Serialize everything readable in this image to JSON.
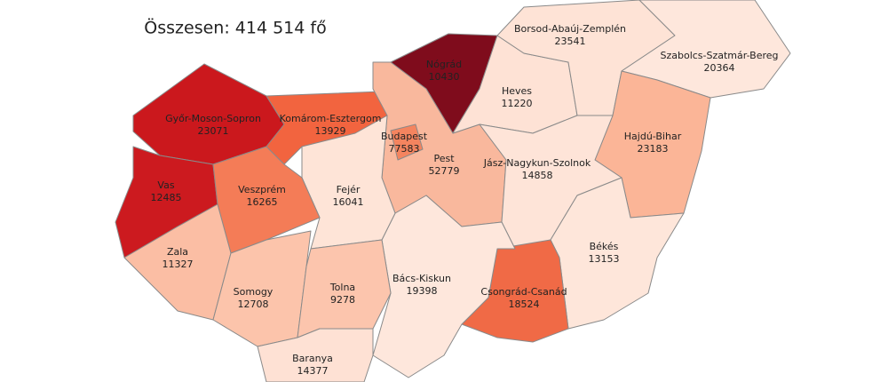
{
  "chart_data": {
    "type": "choropleth",
    "subtitle": "Összesen: 414 514 fő",
    "categories": [
      "Győr-Moson-Sopron",
      "Vas",
      "Komárom-Esztergom",
      "Nógrád",
      "Pest",
      "Budapest",
      "Heves",
      "Borsod-Abaúj-Zemplén",
      "Szabolcs-Szatmár-Bereg",
      "Hajdú-Bihar",
      "Jász-Nagykun-Szolnok",
      "Békés",
      "Csongrád-Csanád",
      "Bács-Kiskun",
      "Fejér",
      "Veszprém",
      "Zala",
      "Somogy",
      "Tolna",
      "Baranya"
    ],
    "values": [
      23071,
      12485,
      13929,
      10430,
      52779,
      77583,
      11220,
      23541,
      20364,
      23183,
      14858,
      13153,
      18524,
      19398,
      16041,
      16265,
      11327,
      12708,
      9278,
      14377
    ],
    "colors": [
      "#cb181d",
      "#cc1a1f",
      "#f2643f",
      "#7f0c1c",
      "#f9b89d",
      "#f4845f",
      "#fee2d5",
      "#fee3d6",
      "#fee7dc",
      "#fbb597",
      "#fee4d8",
      "#fee6da",
      "#f06a46",
      "#fee7dc",
      "#fee4d7",
      "#f47c57",
      "#fbbea4",
      "#fcc4ab",
      "#fcc5ad",
      "#fee1d4"
    ]
  }
}
